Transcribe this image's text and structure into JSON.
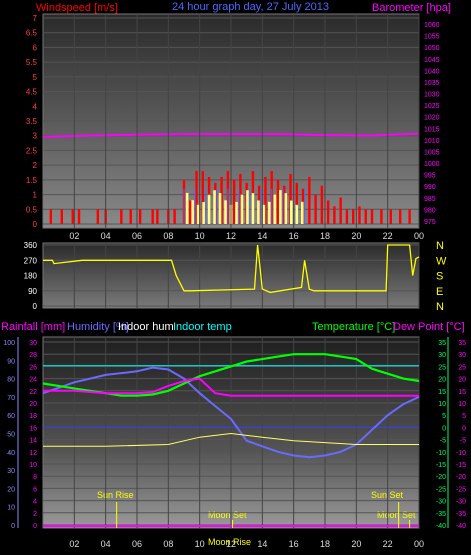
{
  "header": {
    "windspeed_label": "Windspeed [m/s]",
    "title": "24 hour graph day, 27 July 2013",
    "barometer_label": "Barometer [hpa]"
  },
  "colors": {
    "windspeed": "#ff0000",
    "windgust": "#ffff88",
    "windavg": "#4a6cff",
    "barometer": "#ff00ff",
    "direction": "#ffff00",
    "rain": "#ff00ff",
    "humidity": "#6a6aff",
    "indoor_hum": "#ffffff",
    "indoor_temp": "#00ffff",
    "temperature": "#00ff00",
    "dew_point": "#ff00ff",
    "axis_left": "#ff00ff",
    "sun_moon": "#ffff00"
  },
  "x_ticks": [
    "02",
    "04",
    "06",
    "08",
    "10",
    "12",
    "14",
    "16",
    "18",
    "20",
    "22",
    "00"
  ],
  "x_ticks_bottom": [
    "02",
    "04",
    "06",
    "08",
    "10",
    "12",
    "14",
    "16",
    "18",
    "20",
    "22",
    "00"
  ],
  "panel1": {
    "left_ticks": [
      "7",
      "6.5",
      "6",
      "5.5",
      "5",
      "4.5",
      "4",
      "3.5",
      "3",
      "2.5",
      "2",
      "1.5",
      "1",
      "0.5",
      "0"
    ],
    "right_ticks": [
      "1060",
      "1055",
      "1050",
      "1045",
      "1040",
      "1035",
      "1030",
      "1025",
      "1020",
      "1015",
      "1010",
      "1005",
      "1000",
      "995",
      "990",
      "985",
      "980",
      "975"
    ]
  },
  "panel2": {
    "left_ticks": [
      "360",
      "270",
      "180",
      "90",
      "0"
    ],
    "compass": [
      "N",
      "W",
      "S",
      "E",
      "N"
    ]
  },
  "panel3": {
    "labels": {
      "rainfall": "Rainfall [mm]",
      "humidity": "Humidity [%]",
      "indoor_hum": "Indoor hum",
      "indoor_temp": "Indoor temp",
      "temperature": "Temperature [°C]",
      "dew_point": "Dew Point [°C]"
    },
    "left_pct_ticks": [
      "100",
      "90",
      "80",
      "70",
      "60",
      "50",
      "40",
      "30",
      "20",
      "10",
      "0"
    ],
    "left_mm_ticks": [
      "30",
      "28",
      "26",
      "24",
      "22",
      "20",
      "18",
      "16",
      "14",
      "12",
      "10",
      "8",
      "6",
      "4",
      "2",
      "0"
    ],
    "right_ticks": [
      "35",
      "30",
      "25",
      "20",
      "15",
      "10",
      "5",
      "0",
      "-5",
      "-10",
      "-15",
      "-20",
      "-25",
      "-30",
      "-35",
      "-40"
    ],
    "events": {
      "sun_rise": "Sun Rise",
      "sun_set": "Sun Set",
      "moon_set_1": "Moon Set",
      "moon_set_2": "Moon Set",
      "moon_rise": "Moon Rise"
    }
  },
  "chart_data": [
    {
      "type": "bar",
      "title": "24 hour graph day, 27 July 2013",
      "ylabel": "Windspeed [m/s]",
      "ylim": [
        0,
        7
      ],
      "y2label": "Barometer [hpa]",
      "y2lim": [
        975,
        1060
      ],
      "series": [
        {
          "name": "Windspeed [m/s]",
          "type": "bar",
          "hours": [
            0.5,
            1.2,
            1.9,
            2.3,
            3.5,
            4.0,
            5.0,
            5.6,
            6.2,
            7.0,
            7.3,
            8.0,
            8.4,
            9.0,
            9.4,
            9.8,
            10.2,
            10.6,
            11.0,
            11.4,
            11.8,
            12.2,
            12.6,
            13.0,
            13.4,
            13.8,
            14.2,
            14.6,
            15.0,
            15.4,
            15.8,
            16.2,
            16.6,
            17.0,
            17.4,
            17.8,
            18.2,
            18.6,
            19.0,
            19.4,
            19.8,
            20.2,
            20.6,
            21.0,
            21.6,
            22.2,
            22.8,
            23.4
          ],
          "values": [
            0.5,
            0.5,
            0.5,
            0.5,
            0.5,
            0.5,
            0.5,
            0.5,
            0.5,
            0.5,
            0.5,
            0.5,
            0.5,
            1.5,
            0.8,
            1.8,
            1.8,
            1.6,
            1.4,
            1.6,
            1.8,
            1.5,
            1.7,
            1.4,
            1.8,
            1.3,
            1.6,
            1.8,
            1.5,
            1.3,
            1.7,
            1.4,
            1.2,
            1.6,
            1.0,
            1.3,
            0.8,
            0.6,
            0.9,
            0.5,
            0.5,
            0.6,
            0.5,
            0.5,
            0.5,
            0.5,
            0.5,
            0.5
          ]
        },
        {
          "name": "Barometer [hpa]",
          "type": "line",
          "hours": [
            0,
            3,
            6,
            9,
            12,
            15,
            18,
            21,
            24
          ],
          "values": [
            1011,
            1011.5,
            1011.8,
            1012,
            1012,
            1012,
            1011.7,
            1011.5,
            1012.2
          ]
        }
      ]
    },
    {
      "type": "line",
      "ylim": [
        0,
        360
      ],
      "series": [
        {
          "name": "Wind direction",
          "hours": [
            0,
            0.6,
            0.7,
            2.5,
            2.6,
            8.2,
            8.5,
            9.0,
            9.4,
            13.5,
            13.7,
            14.0,
            14.5,
            16.5,
            16.7,
            17.0,
            17.3,
            19.0,
            20.5,
            21.9,
            22.0,
            23.4,
            23.6,
            23.8,
            24.0
          ],
          "values": [
            270,
            270,
            250,
            270,
            270,
            270,
            180,
            90,
            90,
            100,
            360,
            100,
            80,
            110,
            270,
            100,
            90,
            90,
            90,
            90,
            360,
            360,
            180,
            280,
            290
          ]
        }
      ]
    },
    {
      "type": "line",
      "y2label": "Temperature [°C]",
      "y2lim": [
        -40,
        35
      ],
      "series": [
        {
          "name": "Humidity [%]",
          "hours": [
            0,
            1,
            2,
            3,
            4,
            5,
            6,
            7,
            8,
            9,
            10,
            11,
            12,
            13,
            14,
            15,
            16,
            17,
            18,
            19,
            20,
            21,
            22,
            23,
            24
          ],
          "values": [
            72,
            75,
            78,
            80,
            82,
            83,
            84,
            86,
            85,
            80,
            72,
            65,
            58,
            46,
            43,
            40,
            38,
            37,
            38,
            40,
            44,
            52,
            60,
            66,
            70
          ]
        },
        {
          "name": "Indoor hum",
          "hours": [
            0,
            4,
            8,
            10,
            12,
            14,
            16,
            18,
            20,
            22,
            24
          ],
          "values": [
            43,
            43,
            44,
            48,
            50,
            48,
            46,
            45,
            44,
            44,
            44
          ]
        },
        {
          "name": "Indoor temp",
          "hours": [
            0,
            4,
            8,
            12,
            16,
            20,
            24
          ],
          "values": [
            87,
            87,
            87,
            87,
            87,
            87,
            87
          ]
        },
        {
          "name": "Temperature [°C]",
          "hours": [
            0,
            1,
            2,
            3,
            4,
            5,
            6,
            7,
            8,
            9,
            10,
            11,
            12,
            13,
            14,
            15,
            16,
            17,
            18,
            19,
            20,
            21,
            22,
            23,
            24
          ],
          "values": [
            18,
            17,
            16,
            15,
            14,
            13,
            13,
            13.5,
            15,
            18,
            21,
            23,
            25,
            27,
            28,
            29,
            30,
            30,
            30,
            29,
            28,
            24,
            22,
            20,
            19
          ]
        },
        {
          "name": "Dew Point [°C]",
          "hours": [
            0,
            2,
            4,
            6,
            7,
            8,
            9,
            10,
            11,
            12,
            14,
            16,
            18,
            20,
            22,
            24
          ],
          "values": [
            15,
            15,
            14,
            14,
            14.5,
            17,
            19,
            20,
            14,
            13,
            13,
            13,
            13,
            13,
            13,
            13
          ]
        }
      ]
    }
  ]
}
